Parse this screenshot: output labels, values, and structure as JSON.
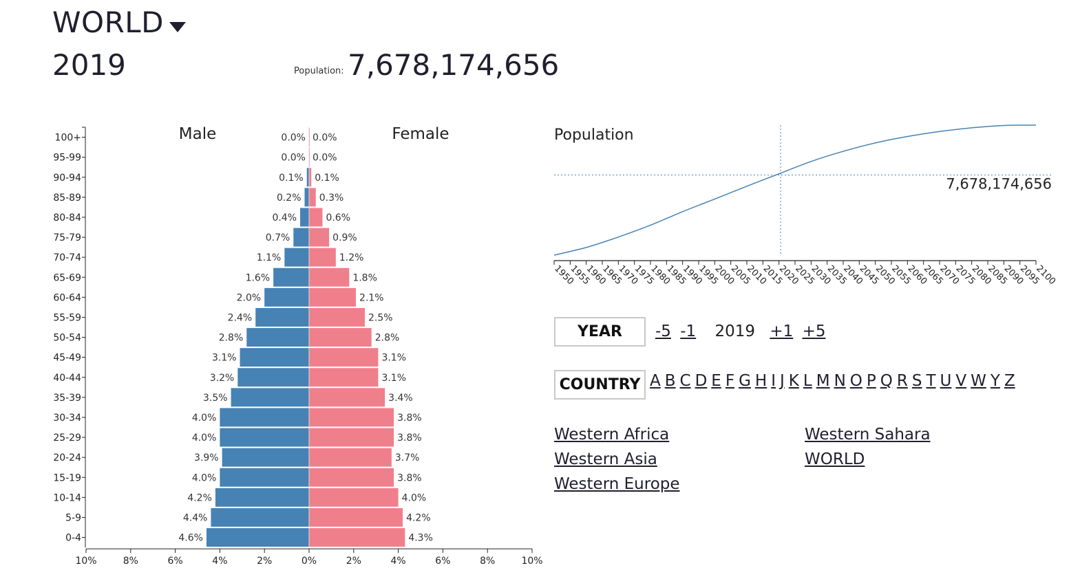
{
  "header": {
    "region": "WORLD",
    "year": "2019",
    "population_label": "Population:",
    "population_value": "7,678,174,656"
  },
  "chart_data": [
    {
      "type": "bar",
      "subtype": "population-pyramid",
      "title": "",
      "male_label": "Male",
      "female_label": "Female",
      "categories": [
        "100+",
        "95-99",
        "90-94",
        "85-89",
        "80-84",
        "75-79",
        "70-74",
        "65-69",
        "60-64",
        "55-59",
        "50-54",
        "45-49",
        "40-44",
        "35-39",
        "30-34",
        "25-29",
        "20-24",
        "15-19",
        "10-14",
        "5-9",
        "0-4"
      ],
      "series": [
        {
          "name": "Male",
          "color": "#4682b4",
          "values": [
            0.0,
            0.0,
            0.1,
            0.2,
            0.4,
            0.7,
            1.1,
            1.6,
            2.0,
            2.4,
            2.8,
            3.1,
            3.2,
            3.5,
            4.0,
            4.0,
            3.9,
            4.0,
            4.2,
            4.4,
            4.6
          ],
          "labels": [
            "0.0%",
            "0.0%",
            "0.1%",
            "0.2%",
            "0.4%",
            "0.7%",
            "1.1%",
            "1.6%",
            "2.0%",
            "2.4%",
            "2.8%",
            "3.1%",
            "3.2%",
            "3.5%",
            "4.0%",
            "4.0%",
            "3.9%",
            "4.0%",
            "4.2%",
            "4.4%",
            "4.6%"
          ]
        },
        {
          "name": "Female",
          "color": "#f07f8c",
          "values": [
            0.0,
            0.0,
            0.1,
            0.3,
            0.6,
            0.9,
            1.2,
            1.8,
            2.1,
            2.5,
            2.8,
            3.1,
            3.1,
            3.4,
            3.8,
            3.8,
            3.7,
            3.8,
            4.0,
            4.2,
            4.3
          ],
          "labels": [
            "0.0%",
            "0.0%",
            "0.1%",
            "0.3%",
            "0.6%",
            "0.9%",
            "1.2%",
            "1.8%",
            "2.1%",
            "2.5%",
            "2.8%",
            "3.1%",
            "3.1%",
            "3.4%",
            "3.8%",
            "3.8%",
            "3.7%",
            "3.8%",
            "4.0%",
            "4.2%",
            "4.3%"
          ]
        }
      ],
      "xlim": [
        -10,
        10
      ],
      "x_ticks": [
        -10,
        -8,
        -6,
        -4,
        -2,
        0,
        2,
        4,
        6,
        8,
        10
      ],
      "x_tick_labels": [
        "10%",
        "8%",
        "6%",
        "4%",
        "2%",
        "0%",
        "2%",
        "4%",
        "6%",
        "8%",
        "10%"
      ]
    },
    {
      "type": "line",
      "title": "Population",
      "x_ticks": [
        1950,
        1955,
        1960,
        1965,
        1970,
        1975,
        1980,
        1985,
        1990,
        1995,
        2000,
        2005,
        2010,
        2015,
        2020,
        2025,
        2030,
        2035,
        2040,
        2045,
        2050,
        2055,
        2060,
        2065,
        2070,
        2075,
        2080,
        2085,
        2090,
        2095,
        2100
      ],
      "x_tick_labels": [
        "1950",
        "1955",
        "1960",
        "1965",
        "1970",
        "1975",
        "1980",
        "1985",
        "1990",
        "1995",
        "2000",
        "2005",
        "2010",
        "2015",
        "2020",
        "2025",
        "2030",
        "2035",
        "2040",
        "2045",
        "2050",
        "2055",
        "2060",
        "2065",
        "2070",
        "2075",
        "2080",
        "2085",
        "2090",
        "2095",
        "2100"
      ],
      "xlim": [
        1950,
        2100
      ],
      "ylim": [
        2000000000,
        11500000000
      ],
      "x": [
        1950,
        1960,
        1970,
        1980,
        1990,
        2000,
        2010,
        2019,
        2030,
        2040,
        2050,
        2060,
        2070,
        2080,
        2090,
        2100
      ],
      "y": [
        2540000000,
        3030000000,
        3700000000,
        4460000000,
        5330000000,
        6140000000,
        6960000000,
        7678174656,
        8550000000,
        9200000000,
        9740000000,
        10150000000,
        10470000000,
        10710000000,
        10860000000,
        10880000000
      ],
      "marker": {
        "x": 2019,
        "y": 7678174656,
        "label": "7,678,174,656"
      },
      "color": "#4682b4"
    }
  ],
  "controls": {
    "year_button": "YEAR",
    "year_minus5": "-5",
    "year_minus1": "-1",
    "current_year": "2019",
    "year_plus1": "+1",
    "year_plus5": "+5",
    "country_button": "COUNTRY",
    "letters": [
      "A",
      "B",
      "C",
      "D",
      "E",
      "F",
      "G",
      "H",
      "I",
      "J",
      "K",
      "L",
      "M",
      "N",
      "O",
      "P",
      "Q",
      "R",
      "S",
      "T",
      "U",
      "V",
      "W",
      "Y",
      "Z"
    ]
  },
  "country_links": {
    "col1": [
      "Western Africa",
      "Western Asia",
      "Western Europe"
    ],
    "col2": [
      "Western Sahara",
      "WORLD"
    ]
  }
}
